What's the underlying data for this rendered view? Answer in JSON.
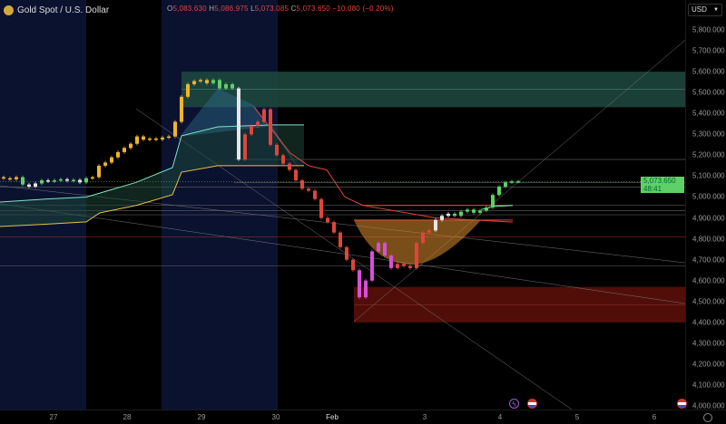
{
  "header": {
    "symbol": "Gold Spot / U.S. Dollar",
    "o_label": "O",
    "o": "5,083.630",
    "h_label": "H",
    "h": "5,086.975",
    "l_label": "L",
    "l": "5,073.085",
    "c_label": "C",
    "c": "5,073.650",
    "change": "−10.080 (−0.20%)"
  },
  "currency": "USD",
  "price_tag": {
    "price": "5,073.650",
    "countdown": "48:41"
  },
  "y_ticks": [
    "5,800.000",
    "5,700.000",
    "5,600.000",
    "5,500.000",
    "5,400.000",
    "5,300.000",
    "5,200.000",
    "5,100.000",
    "5,000.000",
    "4,900.000",
    "4,800.000",
    "4,700.000",
    "4,600.000",
    "4,500.000",
    "4,400.000",
    "4,300.000",
    "4,200.000",
    "4,100.000",
    "4,000.000"
  ],
  "x_ticks": [
    "27",
    "28",
    "29",
    "30",
    "Feb",
    "3",
    "4",
    "5",
    "6"
  ],
  "colors": {
    "up": "#5fd068",
    "down": "#e0453c",
    "neutral": "#e6e6e6",
    "trend": "#f0b429",
    "extreme": "#d94fd6",
    "zone_supply": "#1f4a40",
    "zone_demand": "#5a0f0a",
    "band_upper": "#7fe3c8",
    "band_lower": "#e8c04a"
  },
  "icons": [
    "gold-logo",
    "chevron-down-icon",
    "flash-icon",
    "us-flag-icon",
    "gear-icon"
  ],
  "chart_data": {
    "type": "candlestick",
    "ylim": [
      4000,
      5800
    ],
    "close": [
      5090,
      5085,
      5095,
      5060,
      5050,
      5065,
      5080,
      5075,
      5080,
      5085,
      5078,
      5082,
      5070,
      5090,
      5095,
      5150,
      5165,
      5190,
      5215,
      5235,
      5255,
      5290,
      5275,
      5280,
      5275,
      5285,
      5290,
      5360,
      5480,
      5540,
      5555,
      5560,
      5545,
      5560,
      5520,
      5540,
      5520,
      5180,
      5300,
      5340,
      5360,
      5420,
      5250,
      5200,
      5160,
      5130,
      5080,
      5040,
      5030,
      4990,
      4900,
      4880,
      4830,
      4760,
      4700,
      4650,
      4520,
      4600,
      4740,
      4780,
      4720,
      4660,
      4680,
      4670,
      4660,
      4780,
      4830,
      4840,
      4890,
      4910,
      4920,
      4910,
      4930,
      4940,
      4925,
      4935,
      4950,
      5010,
      5050,
      5070,
      5075,
      5073.65
    ],
    "candle_color": "yyygwwgwggwgwgyyyyyyyyyyyyyyyyyyyggggwrrrrrrrrrrrrrrrrrrmmmmmmrrrrrrwwwgggggggggggggg",
    "band_upper": [
      4976,
      4990,
      5000,
      5019,
      5070,
      5141,
      5293,
      5336,
      5345,
      5345
    ],
    "band_lower": [
      4859,
      4870,
      4881,
      4924,
      4960,
      5011,
      5119,
      5150,
      5150,
      5150
    ],
    "resistance_band": [
      5430,
      5320,
      5210,
      5150,
      5130,
      5000,
      4960,
      4900,
      4880
    ],
    "supply_zone": [
      5430,
      5600
    ],
    "demand_zone": [
      4400,
      4570
    ],
    "levels": [
      5180,
      5070,
      5048,
      4960,
      4935,
      4915,
      4810,
      4670
    ],
    "last_price": 5073.65
  }
}
